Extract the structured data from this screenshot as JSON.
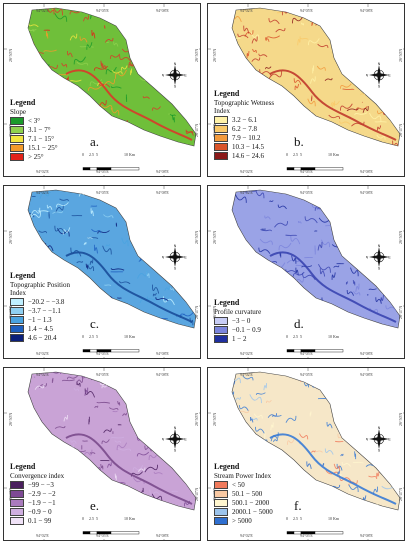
{
  "coords": {
    "top": [
      "94°02'E",
      "94°05'E",
      "94°08'E"
    ],
    "bottom": [
      "94°02'E",
      "94°05'E",
      "94°08'E"
    ],
    "left": [
      "26°50'N",
      "26°47'N"
    ],
    "right": [
      "26°50'N",
      "26°47'N"
    ]
  },
  "scale": {
    "labels": [
      "0",
      "2.5",
      "5",
      "10 Km"
    ]
  },
  "compass": {
    "n": "N",
    "e": "E",
    "s": "S",
    "w": "W"
  },
  "panels": [
    {
      "id": "a",
      "letter": "a.",
      "legend_heading": "Legend",
      "title": "Slope",
      "subtitle": "",
      "fill": "#6fbf3a",
      "stroke": "#d9382a",
      "classes": [
        {
          "label": "< 3°",
          "color": "#1a9a2a"
        },
        {
          "label": "3.1 − 7°",
          "color": "#8fd14f"
        },
        {
          "label": "7.1 − 15°",
          "color": "#f2e640"
        },
        {
          "label": "15.1 − 25°",
          "color": "#f39a2b"
        },
        {
          "label": "> 25°",
          "color": "#e2231a"
        }
      ]
    },
    {
      "id": "b",
      "letter": "b.",
      "legend_heading": "Legend",
      "title": "Topographic Wetness",
      "subtitle": "Index",
      "fill": "#f5d98a",
      "stroke": "#c0392b",
      "classes": [
        {
          "label": "3.2 − 6.1",
          "color": "#fff2a8"
        },
        {
          "label": "6.2 − 7.8",
          "color": "#f9c96a"
        },
        {
          "label": "7.9 − 10.2",
          "color": "#f29a3d"
        },
        {
          "label": "10.3 − 14.5",
          "color": "#d9542a"
        },
        {
          "label": "14.6 − 24.6",
          "color": "#8b1a1a"
        }
      ]
    },
    {
      "id": "c",
      "letter": "c.",
      "legend_heading": "Legend",
      "title": "Topographic Position",
      "subtitle": "Index",
      "fill": "#5aa6e0",
      "stroke": "#1a4e9a",
      "classes": [
        {
          "label": "−20.2 − −3.8",
          "color": "#bfefff"
        },
        {
          "label": "−3.7 − −1.1",
          "color": "#8fd0f2"
        },
        {
          "label": "−1 − 1.3",
          "color": "#4aa3e0"
        },
        {
          "label": "1.4 − 4.5",
          "color": "#1e5fbf"
        },
        {
          "label": "4.6 − 20.4",
          "color": "#0b1f7a"
        }
      ]
    },
    {
      "id": "d",
      "letter": "d.",
      "legend_heading": "Legend",
      "title": "Profile curvature",
      "subtitle": "",
      "fill": "#9aa3e6",
      "stroke": "#3a45b0",
      "classes": [
        {
          "label": "−3 − 0",
          "color": "#c8cdf5"
        },
        {
          "label": "−0.1 − 0.9",
          "color": "#7b85dc"
        },
        {
          "label": "1 − 2",
          "color": "#1f2f9f"
        }
      ]
    },
    {
      "id": "e",
      "letter": "e.",
      "legend_heading": "Legend",
      "title": "Convergence index",
      "subtitle": "",
      "fill": "#c9a3d6",
      "stroke": "#7a4a8c",
      "classes": [
        {
          "label": "−99 − −3",
          "color": "#4a1f5e"
        },
        {
          "label": "−2.9 − −2",
          "color": "#7e4a95"
        },
        {
          "label": "−1.9 − −1",
          "color": "#a97bbd"
        },
        {
          "label": "−0.9 − 0",
          "color": "#cfaee0"
        },
        {
          "label": "0.1 − 99",
          "color": "#f0e2f7"
        }
      ]
    },
    {
      "id": "f",
      "letter": "f.",
      "legend_heading": "Legend",
      "title": "Stream Power Index",
      "subtitle": "",
      "fill": "#f6e7c8",
      "stroke": "#3a7bd5",
      "classes": [
        {
          "label": "< 50",
          "color": "#f07a5c"
        },
        {
          "label": "50.1 − 500",
          "color": "#f9c9a3"
        },
        {
          "label": "500.1 − 2000",
          "color": "#fff6cf"
        },
        {
          "label": "2000.1 − 5000",
          "color": "#9cc4ec"
        },
        {
          "label": "> 5000",
          "color": "#2f6fd0"
        }
      ]
    }
  ]
}
